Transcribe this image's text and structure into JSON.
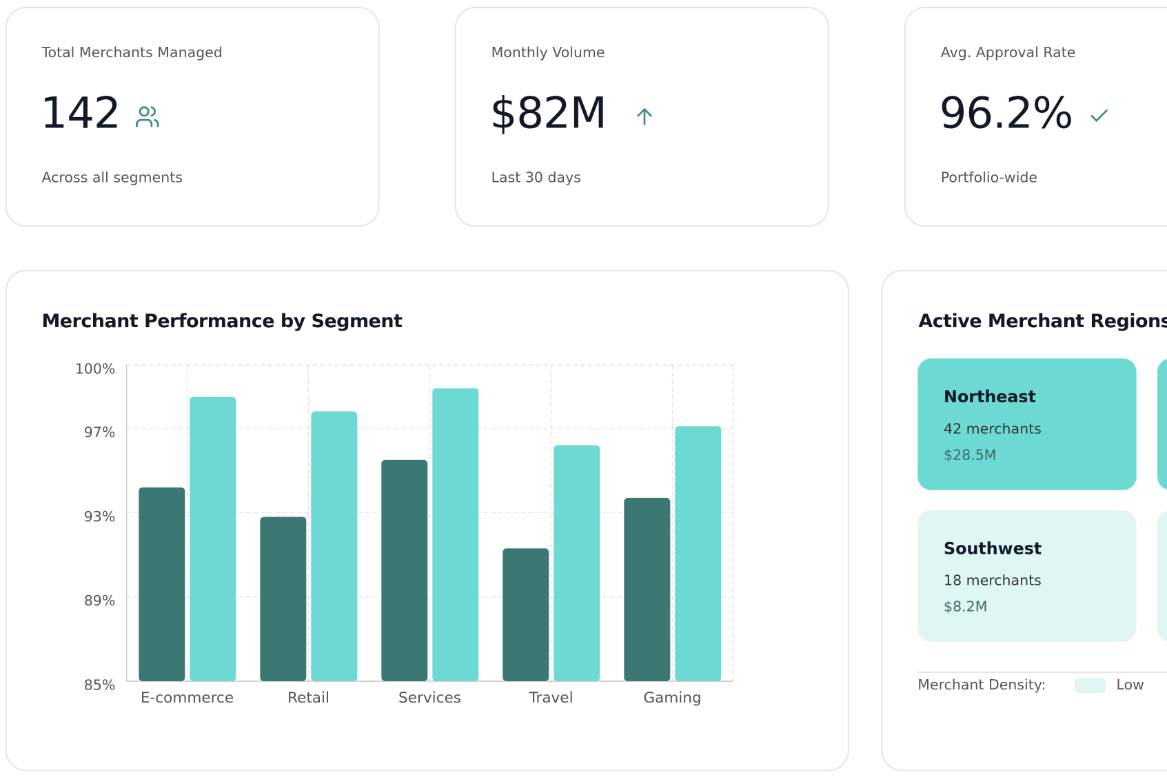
{
  "kpis": [
    {
      "label": "Total Merchants Managed",
      "value": "142",
      "subtitle": "Across all segments"
    },
    {
      "label": "Monthly Volume",
      "value": "$82M",
      "subtitle": "Last 30 days"
    },
    {
      "label": "Avg. Approval Rate",
      "value": "96.2%",
      "subtitle": "Portfolio-wide"
    }
  ],
  "chart_data": {
    "type": "bar",
    "title": "Merchant Performance by Segment",
    "categories": [
      "E-commerce",
      "Retail",
      "Services",
      "Travel",
      "Gaming"
    ],
    "series": [
      {
        "color": "#3b7773",
        "values": [
          94.2,
          92.8,
          95.5,
          91.3,
          93.7
        ]
      },
      {
        "color": "#6dd9d3",
        "values": [
          98.5,
          97.8,
          98.9,
          96.2,
          97.1
        ]
      }
    ],
    "ylim": [
      85,
      100
    ],
    "yticks": [
      {
        "value": 85,
        "label": "85%"
      },
      {
        "value": 89,
        "label": "89%"
      },
      {
        "value": 93,
        "label": "93%"
      },
      {
        "value": 97,
        "label": "97%"
      },
      {
        "value": 100,
        "label": "100%"
      }
    ],
    "grid": true
  },
  "regions": {
    "title": "Active Merchant Regions",
    "items": [
      {
        "name": "Northeast",
        "merchants": "42 merchants",
        "volume": "$28.5M"
      },
      {
        "name": "Southwest",
        "merchants": "18 merchants",
        "volume": "$8.2M"
      }
    ],
    "legend_label": "Merchant Density:",
    "legend_items": [
      "Low"
    ]
  }
}
